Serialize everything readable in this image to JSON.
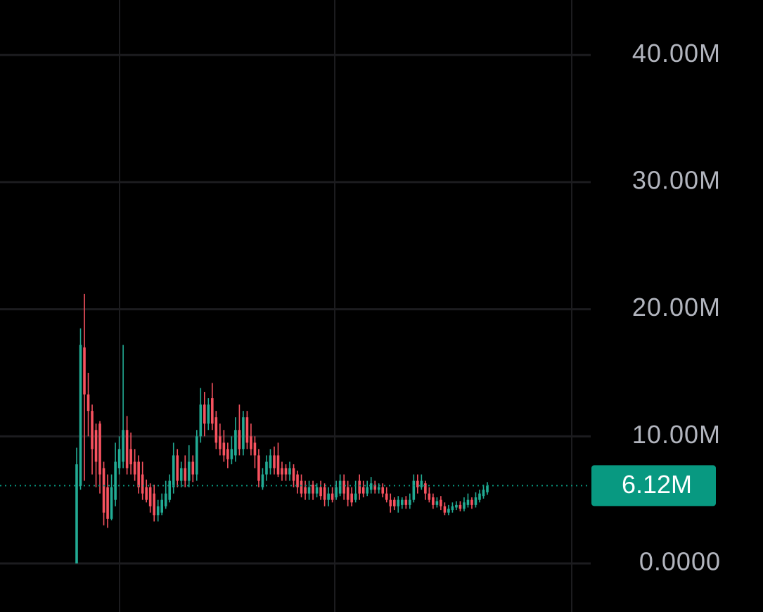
{
  "chart_data": {
    "type": "candlestick",
    "open": [
      0,
      6.1,
      17,
      13.3,
      12,
      10.5,
      11,
      7.5,
      6,
      3.5,
      5,
      7.5,
      8,
      10.5,
      9,
      8,
      8,
      7,
      6,
      6,
      5.5,
      3.8,
      4,
      4.5,
      5,
      6,
      8.5,
      6.5,
      7.5,
      6.5,
      8,
      7,
      10,
      12.5,
      11,
      13,
      11.5,
      10,
      9.5,
      9,
      8.2,
      8.5,
      10.5,
      9,
      11.5,
      10,
      9.5,
      8.5,
      6,
      7,
      7.5,
      8.5,
      8.5,
      7.5,
      7.5,
      7,
      7.5,
      7,
      6.5,
      6,
      5.5,
      6.2,
      5.5,
      6,
      6,
      5,
      5.5,
      5.2,
      5.5,
      6.5,
      6,
      5.5,
      5,
      6.5,
      6,
      5.5,
      5.8,
      6.2,
      5.8,
      6,
      5.5,
      5,
      5,
      4.5,
      4.6,
      5,
      4.6,
      5,
      6.5,
      6,
      6.3,
      5.5,
      5.2,
      4.6,
      5,
      4.5,
      4,
      4.2,
      4.4,
      4.6,
      4.3,
      4.6,
      5,
      4.6,
      5,
      5.3,
      5.6
    ],
    "high": [
      9.1,
      18.5,
      21.2,
      15,
      12.5,
      11,
      11.2,
      8,
      7,
      7,
      9.5,
      10,
      17.2,
      11.6,
      10.3,
      9,
      8.5,
      8,
      6.6,
      6.3,
      6.2,
      5,
      5.5,
      6.5,
      7,
      9.5,
      9,
      8,
      8.5,
      9.3,
      8.5,
      10.5,
      13.8,
      13.5,
      13,
      14.2,
      12,
      11,
      10.5,
      9.5,
      10,
      11.5,
      12.5,
      12,
      12,
      11,
      10,
      9,
      7.5,
      8.5,
      9,
      9.2,
      9.5,
      8,
      7.8,
      8,
      7.8,
      7.3,
      7,
      6.5,
      6.5,
      6.5,
      6.3,
      6.5,
      6.3,
      6,
      6,
      6.5,
      7,
      7,
      6.5,
      6,
      6.5,
      7,
      6.5,
      6.5,
      6.8,
      6.5,
      6.3,
      6.3,
      6,
      5.5,
      5.2,
      5.3,
      5.2,
      5.3,
      5.5,
      7,
      7,
      7,
      6.5,
      6,
      5.5,
      5.2,
      5.3,
      4.8,
      4.6,
      4.8,
      4.9,
      4.9,
      5.2,
      5.5,
      5.2,
      5.6,
      5.8,
      6.2,
      6.4
    ],
    "low": [
      0,
      5.8,
      6.5,
      10,
      7,
      6,
      5.5,
      3,
      2.8,
      3.4,
      4.5,
      7,
      7.5,
      7,
      7,
      6.5,
      5.5,
      5,
      4.8,
      4,
      3.3,
      3.3,
      3.8,
      4.3,
      4.8,
      5.5,
      6,
      6,
      6,
      6,
      6.4,
      6.5,
      9.5,
      10,
      10.5,
      10.5,
      9,
      8.5,
      8,
      7.5,
      7.8,
      8,
      8.5,
      8.5,
      9,
      8.5,
      7.5,
      6,
      5.8,
      6.5,
      7,
      7,
      6.8,
      6.5,
      6.5,
      6.5,
      6,
      5.5,
      5.2,
      5,
      5,
      5,
      5.2,
      5,
      4.5,
      4.5,
      4.8,
      5,
      5.3,
      5,
      4.5,
      4.5,
      4.8,
      5,
      5.2,
      5.3,
      5.5,
      5.5,
      5.5,
      5.2,
      4.8,
      4,
      4.2,
      4,
      4.3,
      4.3,
      4.3,
      4.8,
      5.5,
      5.8,
      5,
      4.8,
      4.3,
      4.4,
      4.2,
      3.8,
      3.8,
      4,
      4.2,
      4.1,
      4.1,
      4.4,
      4.3,
      4.4,
      4.8,
      5.1,
      5.4
    ],
    "close": [
      7.8,
      17.2,
      13.3,
      12,
      9,
      8,
      7,
      4,
      3.5,
      6,
      8,
      9,
      10.5,
      7.5,
      7.8,
      7,
      6,
      5.5,
      5,
      4.5,
      3.8,
      4.5,
      5,
      5.5,
      6.5,
      8.5,
      6.5,
      7.5,
      6.5,
      8,
      7,
      10,
      12.5,
      11,
      12.5,
      11,
      9.5,
      9,
      8.5,
      8.2,
      9,
      10.5,
      9,
      11.5,
      9.5,
      9,
      8.5,
      6.5,
      7,
      8,
      8.5,
      7.5,
      7,
      7,
      7,
      7.5,
      6.5,
      6,
      5.5,
      5.5,
      6,
      5.5,
      6,
      5.3,
      5,
      5.5,
      5,
      6,
      6.5,
      5.5,
      5,
      4.8,
      5.5,
      5.5,
      5.5,
      6,
      6.3,
      5.8,
      6,
      5.5,
      5,
      4.5,
      4.5,
      5,
      5,
      4.6,
      5,
      6.5,
      6,
      6.5,
      5.5,
      5,
      4.6,
      4.9,
      4.5,
      4,
      4.3,
      4.5,
      4.6,
      4.3,
      4.8,
      5,
      4.6,
      5.2,
      5.5,
      5.8,
      6.12
    ],
    "up_color": "#22ab94",
    "down_color": "#f7525f",
    "ylim": [
      -3.82,
      44.33
    ],
    "yticks": [
      {
        "value": 0,
        "label": "0.0000"
      },
      {
        "value": 10,
        "label": "10.00M"
      },
      {
        "value": 20,
        "label": "20.00M"
      },
      {
        "value": 30,
        "label": "30.00M"
      },
      {
        "value": 40,
        "label": "40.00M"
      }
    ],
    "grid": true,
    "last_price": {
      "value": 6.12,
      "label": "6.12M",
      "color": "#089981"
    }
  }
}
